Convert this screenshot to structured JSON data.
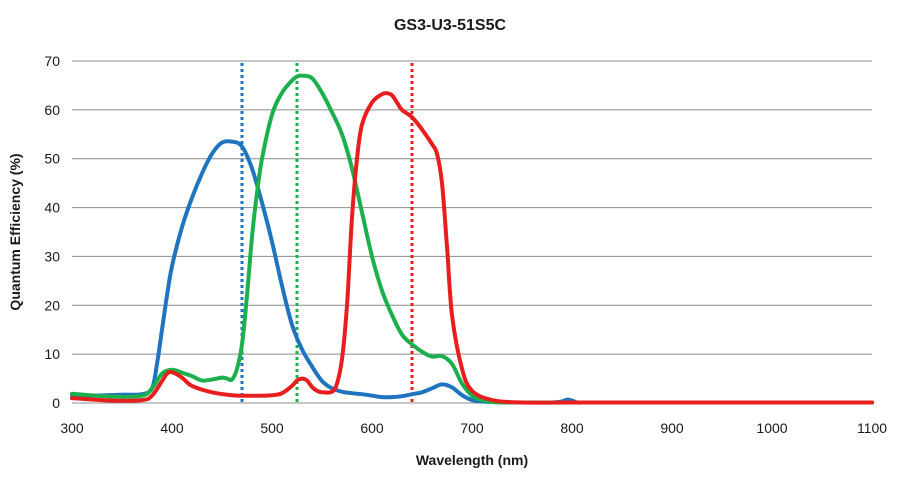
{
  "chart_data": {
    "type": "line",
    "title": "GS3-U3-51S5C",
    "xlabel": "Wavelength (nm)",
    "ylabel": "Quantum Efficiency (%)",
    "xlim": [
      300,
      1100
    ],
    "ylim": [
      0,
      70
    ],
    "x_ticks": [
      300,
      400,
      500,
      600,
      700,
      800,
      900,
      1000,
      1100
    ],
    "y_ticks": [
      0,
      10,
      20,
      30,
      40,
      50,
      60,
      70
    ],
    "grid": "horizontal",
    "colors": {
      "blue": "#1f74c0",
      "green": "#1bb04c",
      "red": "#e81e1e"
    },
    "series": [
      {
        "color": "blue",
        "x": [
          300,
          320,
          350,
          370,
          380,
          385,
          390,
          395,
          400,
          410,
          420,
          430,
          440,
          450,
          460,
          470,
          480,
          490,
          500,
          510,
          520,
          530,
          540,
          550,
          560,
          570,
          580,
          590,
          600,
          610,
          620,
          630,
          640,
          650,
          660,
          670,
          680,
          690,
          700,
          710,
          720,
          740,
          760,
          780,
          790,
          795,
          800,
          805,
          810,
          830,
          850,
          900,
          1000,
          1100
        ],
        "y": [
          1.6,
          1.5,
          1.7,
          1.8,
          3.0,
          8,
          15,
          22,
          28,
          36,
          42,
          47,
          51,
          53.3,
          53.5,
          52.5,
          48,
          41,
          33,
          24,
          16,
          11,
          7.5,
          4.5,
          3.0,
          2.3,
          2.0,
          1.8,
          1.5,
          1.2,
          1.2,
          1.4,
          1.8,
          2.2,
          3.0,
          3.8,
          3.2,
          1.6,
          0.6,
          0.3,
          0.2,
          0.1,
          0.1,
          0.1,
          0.3,
          0.7,
          0.5,
          0.1,
          0.1,
          0.1,
          0.1,
          0.1,
          0.1,
          0.1
        ]
      },
      {
        "color": "green",
        "x": [
          300,
          340,
          370,
          380,
          390,
          400,
          410,
          420,
          430,
          440,
          450,
          455,
          460,
          465,
          470,
          475,
          480,
          485,
          490,
          500,
          510,
          520,
          525,
          530,
          540,
          550,
          560,
          570,
          580,
          590,
          600,
          610,
          620,
          630,
          640,
          650,
          660,
          670,
          680,
          690,
          700,
          710,
          720,
          740,
          760,
          800,
          1100
        ],
        "y": [
          1.9,
          1.3,
          1.5,
          3.0,
          6.0,
          6.8,
          6.2,
          5.5,
          4.6,
          4.8,
          5.2,
          5.0,
          4.8,
          7.0,
          12,
          22,
          34,
          43,
          50,
          59,
          63.5,
          66,
          66.8,
          67,
          66.5,
          63.5,
          59.5,
          55,
          48,
          39,
          30,
          23,
          18,
          14,
          12,
          10.5,
          9.5,
          9.6,
          8,
          4,
          1.5,
          0.6,
          0.2,
          0.1,
          0.1,
          0.1,
          0.1
        ]
      },
      {
        "color": "red",
        "x": [
          300,
          340,
          370,
          380,
          390,
          395,
          400,
          410,
          420,
          440,
          460,
          480,
          500,
          510,
          520,
          525,
          530,
          535,
          540,
          545,
          550,
          560,
          565,
          570,
          575,
          580,
          585,
          590,
          600,
          610,
          615,
          620,
          625,
          630,
          640,
          650,
          660,
          665,
          670,
          675,
          680,
          690,
          700,
          720,
          750,
          800,
          1100
        ],
        "y": [
          1.0,
          0.5,
          0.6,
          1.5,
          4.5,
          6.0,
          6.3,
          5.2,
          3.5,
          2.2,
          1.6,
          1.5,
          1.6,
          2.0,
          3.5,
          4.6,
          5.0,
          4.6,
          3.3,
          2.5,
          2.2,
          2.3,
          4,
          9,
          20,
          38,
          50,
          57,
          61.5,
          63.2,
          63.4,
          63,
          61.5,
          60,
          58.5,
          56,
          53,
          51,
          45,
          32,
          18,
          7,
          2.5,
          0.6,
          0.1,
          0.1,
          0.1
        ]
      }
    ],
    "reference_lines": [
      {
        "color": "blue",
        "x": 470
      },
      {
        "color": "green",
        "x": 525
      },
      {
        "color": "red",
        "x": 640
      }
    ]
  }
}
